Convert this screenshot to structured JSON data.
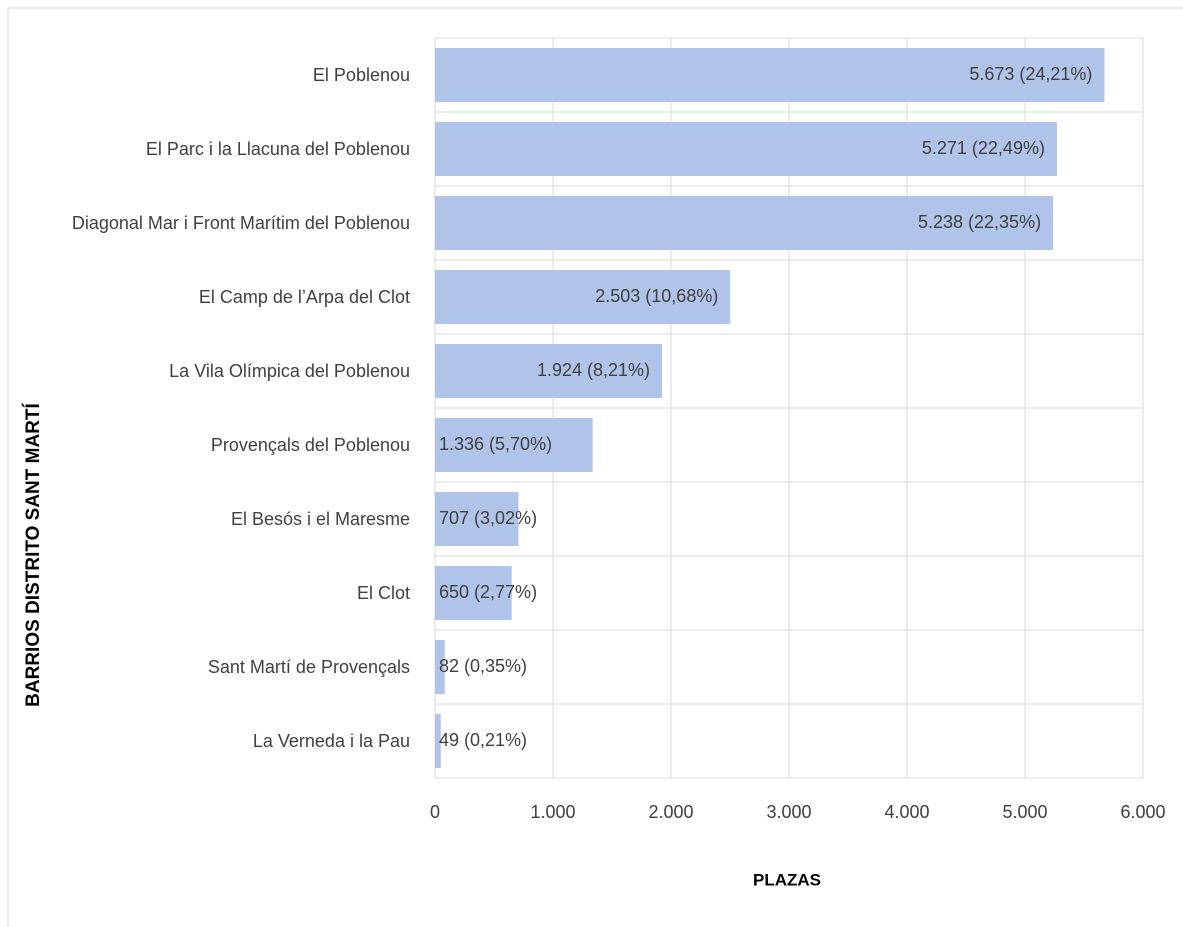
{
  "chart_data": {
    "type": "bar",
    "orientation": "horizontal",
    "categories": [
      "El Poblenou",
      "El Parc i la Llacuna del Poblenou",
      "Diagonal Mar i Front Marítim del Poblenou",
      "El Camp de l’Arpa del Clot",
      "La Vila Olímpica del Poblenou",
      "Provençals del Poblenou",
      "El Besós i el Maresme",
      "El Clot",
      "Sant Martí de Provençals",
      "La Verneda i la Pau"
    ],
    "values": [
      5673,
      5271,
      5238,
      2503,
      1924,
      1336,
      707,
      650,
      82,
      49
    ],
    "value_labels": [
      "5.673 (24,21%)",
      "5.271 (22,49%)",
      "5.238 (22,35%)",
      "2.503 (10,68%)",
      "1.924 (8,21%)",
      "1.336 (5,70%)",
      "707 (3,02%)",
      "650 (2,77%)",
      "82 (0,35%)",
      "49 (0,21%)"
    ],
    "color": "#b0c3e8",
    "xlim": [
      0,
      6000
    ],
    "xticks": [
      0,
      {
        "value": 1000,
        "label": "1.000"
      },
      {
        "value": 2000,
        "label": "2.000"
      },
      {
        "value": 3000,
        "label": "3.000"
      },
      {
        "value": 4000,
        "label": "4.000"
      },
      {
        "value": 5000,
        "label": "5.000"
      },
      {
        "value": 6000,
        "label": "6.000"
      }
    ],
    "xlabel": "PLAZAS",
    "ylabel": "BARRIOS DISTRITO SANT MARTÍ",
    "grid": true
  }
}
